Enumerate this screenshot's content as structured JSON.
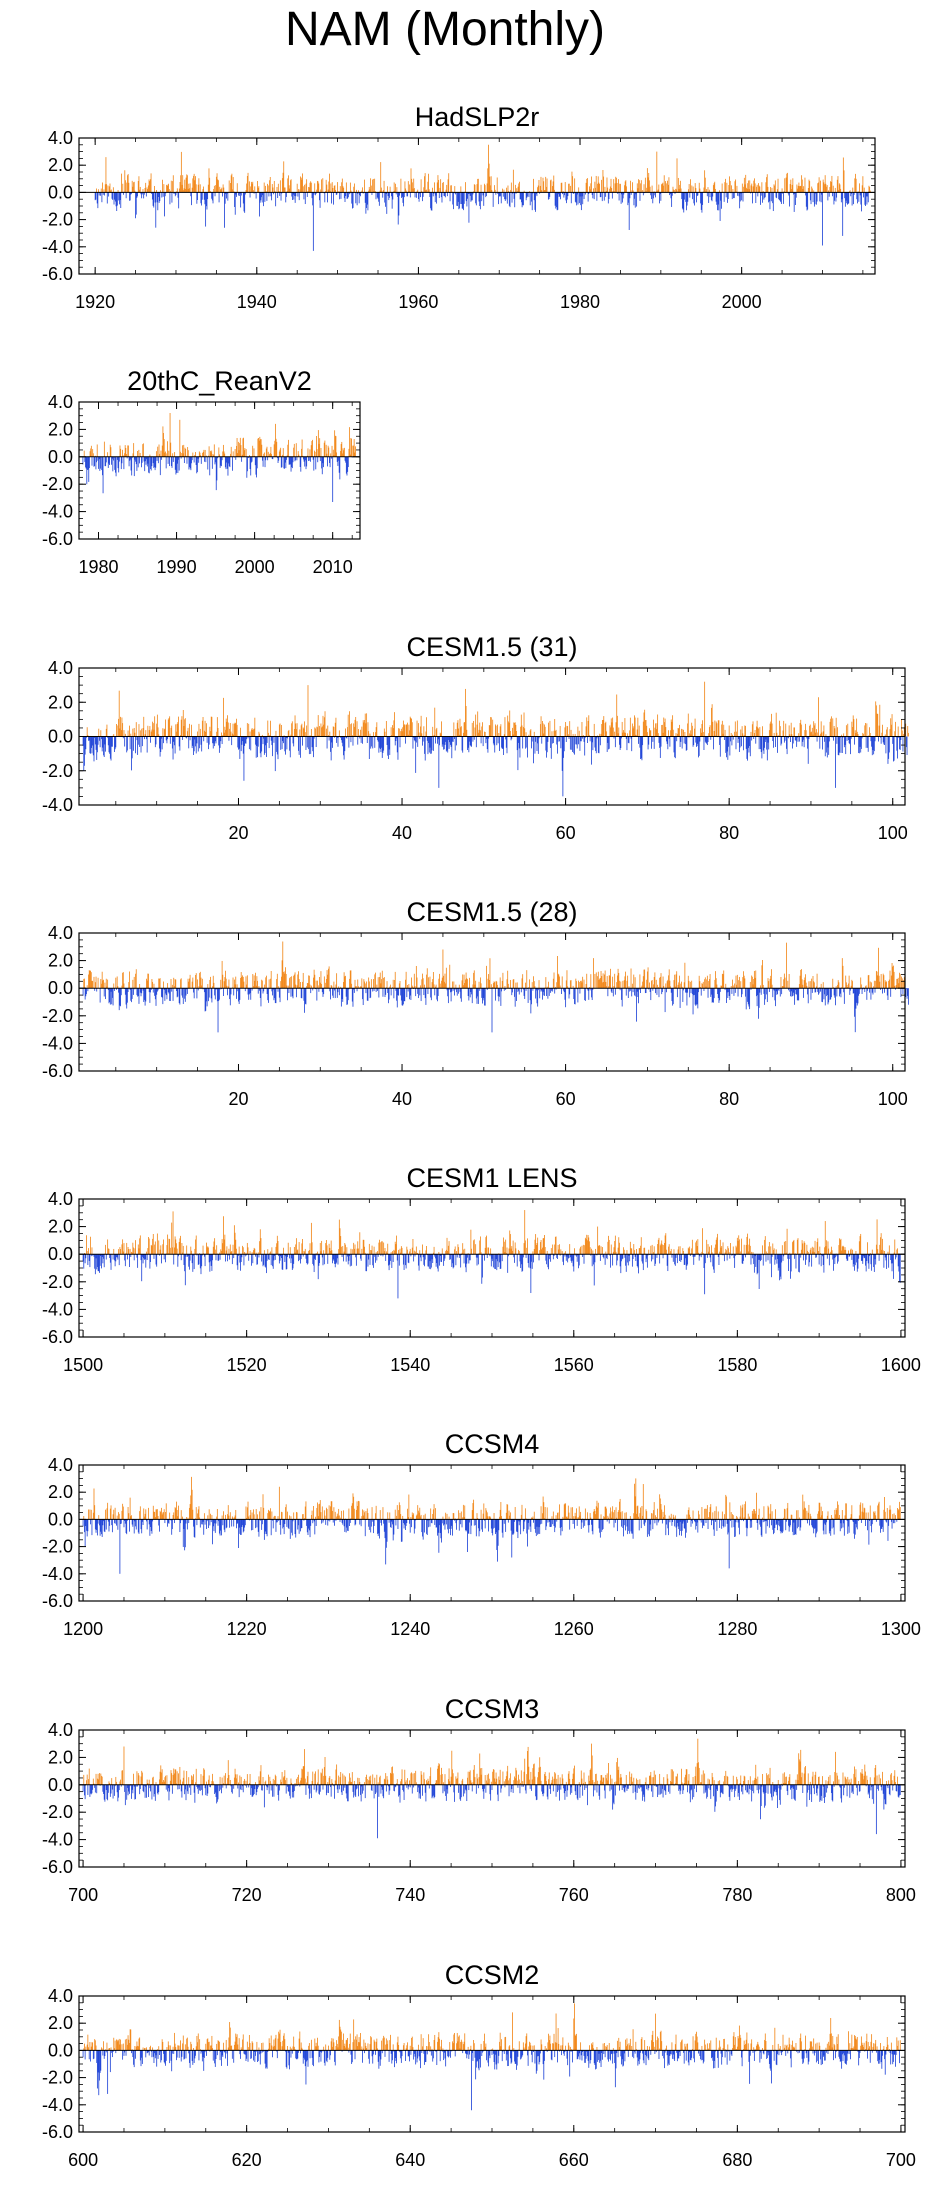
{
  "page_title": "NAM (Monthly)",
  "colors": {
    "positive": "#F28A1E",
    "negative": "#2448D8",
    "axis": "#000000"
  },
  "chart_data": [
    {
      "type": "bar",
      "title": "HadSLP2r",
      "x_range": [
        1920,
        2015
      ],
      "xlim": [
        1918,
        2016.5
      ],
      "x_ticks": [
        1920,
        1940,
        1960,
        1980,
        2000
      ],
      "x_tick_labels": [
        "1920",
        "1940",
        "1960",
        "1980",
        "2000"
      ],
      "ylim": [
        -6.0,
        4.0
      ],
      "y_ticks": [
        -6.0,
        -4.0,
        -2.0,
        0.0,
        2.0,
        4.0
      ],
      "y_tick_labels": [
        "-6.0",
        "-4.0",
        "-2.0",
        "0.0",
        "2.0",
        "4.0"
      ],
      "peaks": [
        {
          "x": 1989.5,
          "y": 3.0
        },
        {
          "x": 1992.0,
          "y": 2.5
        },
        {
          "x": 1947.0,
          "y": -4.3
        },
        {
          "x": 2010.0,
          "y": -3.9
        },
        {
          "x": 2012.5,
          "y": -3.2
        },
        {
          "x": 1936.0,
          "y": -2.6
        }
      ],
      "seed": 11
    },
    {
      "type": "bar",
      "title": "20thC_ReanV2",
      "x_range": [
        1978,
        2012
      ],
      "xlim": [
        1977.5,
        2013.5
      ],
      "x_ticks": [
        1980,
        1990,
        2000,
        2010
      ],
      "x_tick_labels": [
        "1980",
        "1990",
        "2000",
        "2010"
      ],
      "ylim": [
        -6.0,
        4.0
      ],
      "y_ticks": [
        -6.0,
        -4.0,
        -2.0,
        0.0,
        2.0,
        4.0
      ],
      "y_tick_labels": [
        "-6.0",
        "-4.0",
        "-2.0",
        "0.0",
        "2.0",
        "4.0"
      ],
      "peaks": [
        {
          "x": 1989.2,
          "y": 3.2
        },
        {
          "x": 1990.4,
          "y": 2.7
        },
        {
          "x": 2010.0,
          "y": -3.3
        },
        {
          "x": 1978.5,
          "y": -2.0
        }
      ],
      "seed": 23
    },
    {
      "type": "bar",
      "title": "CESM1.5 (31)",
      "x_range": [
        1,
        101
      ],
      "xlim": [
        0.5,
        101.5
      ],
      "x_ticks": [
        20,
        40,
        60,
        80,
        100
      ],
      "x_tick_labels": [
        "20",
        "40",
        "60",
        "80",
        "100"
      ],
      "ylim": [
        -4.0,
        4.0
      ],
      "y_ticks": [
        -4.0,
        -2.0,
        0.0,
        2.0,
        4.0
      ],
      "y_tick_labels": [
        "-4.0",
        "-2.0",
        "0.0",
        "2.0",
        "4.0"
      ],
      "peaks": [
        {
          "x": 28.5,
          "y": 3.0
        },
        {
          "x": 77.0,
          "y": 3.2
        },
        {
          "x": 44.5,
          "y": -3.0
        },
        {
          "x": 93.0,
          "y": -3.0
        }
      ],
      "seed": 37
    },
    {
      "type": "bar",
      "title": "CESM1.5 (28)",
      "x_range": [
        1,
        101
      ],
      "xlim": [
        0.5,
        101.5
      ],
      "x_ticks": [
        20,
        40,
        60,
        80,
        100
      ],
      "x_tick_labels": [
        "20",
        "40",
        "60",
        "80",
        "100"
      ],
      "ylim": [
        -6.0,
        4.0
      ],
      "y_ticks": [
        -6.0,
        -4.0,
        -2.0,
        0.0,
        2.0,
        4.0
      ],
      "y_tick_labels": [
        "-6.0",
        "-4.0",
        "-2.0",
        "0.0",
        "2.0",
        "4.0"
      ],
      "peaks": [
        {
          "x": 87.0,
          "y": 3.3
        },
        {
          "x": 45.0,
          "y": 2.8
        },
        {
          "x": 17.5,
          "y": -3.2
        },
        {
          "x": 51.0,
          "y": -3.2
        }
      ],
      "seed": 41
    },
    {
      "type": "bar",
      "title": "CESM1 LENS",
      "x_range": [
        1500,
        1599
      ],
      "xlim": [
        1499.5,
        1600.5
      ],
      "x_ticks": [
        1500,
        1520,
        1540,
        1560,
        1580,
        1600
      ],
      "x_tick_labels": [
        "1500",
        "1520",
        "1540",
        "1560",
        "1580",
        "1600"
      ],
      "ylim": [
        -6.0,
        4.0
      ],
      "y_ticks": [
        -6.0,
        -4.0,
        -2.0,
        0.0,
        2.0,
        4.0
      ],
      "y_tick_labels": [
        "-6.0",
        "-4.0",
        "-2.0",
        "0.0",
        "2.0",
        "4.0"
      ],
      "peaks": [
        {
          "x": 1511.0,
          "y": 3.1
        },
        {
          "x": 1554.0,
          "y": 3.2
        },
        {
          "x": 1538.5,
          "y": -3.2
        },
        {
          "x": 1576.0,
          "y": -2.9
        }
      ],
      "seed": 53
    },
    {
      "type": "bar",
      "title": "CCSM4",
      "x_range": [
        1200,
        1299
      ],
      "xlim": [
        1199.5,
        1300.5
      ],
      "x_ticks": [
        1200,
        1220,
        1240,
        1260,
        1280,
        1300
      ],
      "x_tick_labels": [
        "1200",
        "1220",
        "1240",
        "1260",
        "1280",
        "1300"
      ],
      "ylim": [
        -6.0,
        4.0
      ],
      "y_ticks": [
        -6.0,
        -4.0,
        -2.0,
        0.0,
        2.0,
        4.0
      ],
      "y_tick_labels": [
        "-6.0",
        "-4.0",
        "-2.0",
        "0.0",
        "2.0",
        "4.0"
      ],
      "peaks": [
        {
          "x": 1224.0,
          "y": 2.4
        },
        {
          "x": 1268.5,
          "y": 2.6
        },
        {
          "x": 1204.5,
          "y": -4.0
        },
        {
          "x": 1279.0,
          "y": -3.6
        }
      ],
      "seed": 67
    },
    {
      "type": "bar",
      "title": "CCSM3",
      "x_range": [
        700,
        799
      ],
      "xlim": [
        699.5,
        800.5
      ],
      "x_ticks": [
        700,
        720,
        740,
        760,
        780,
        800
      ],
      "x_tick_labels": [
        "700",
        "720",
        "740",
        "760",
        "780",
        "800"
      ],
      "ylim": [
        -6.0,
        4.0
      ],
      "y_ticks": [
        -6.0,
        -4.0,
        -2.0,
        0.0,
        2.0,
        4.0
      ],
      "y_tick_labels": [
        "-6.0",
        "-4.0",
        "-2.0",
        "0.0",
        "2.0",
        "4.0"
      ],
      "peaks": [
        {
          "x": 705.0,
          "y": 2.8
        },
        {
          "x": 792.0,
          "y": 2.4
        },
        {
          "x": 736.0,
          "y": -3.9
        },
        {
          "x": 797.0,
          "y": -3.6
        }
      ],
      "seed": 79
    },
    {
      "type": "bar",
      "title": "CCSM2",
      "x_range": [
        600,
        699
      ],
      "xlim": [
        599.5,
        700.5
      ],
      "x_ticks": [
        600,
        620,
        640,
        660,
        680,
        700
      ],
      "x_tick_labels": [
        "600",
        "620",
        "640",
        "660",
        "680",
        "700"
      ],
      "ylim": [
        -6.0,
        4.0
      ],
      "y_ticks": [
        -6.0,
        -4.0,
        -2.0,
        0.0,
        2.0,
        4.0
      ],
      "y_tick_labels": [
        "-6.0",
        "-4.0",
        "-2.0",
        "0.0",
        "2.0",
        "4.0"
      ],
      "peaks": [
        {
          "x": 652.5,
          "y": 2.8
        },
        {
          "x": 670.0,
          "y": 2.7
        },
        {
          "x": 647.5,
          "y": -4.4
        },
        {
          "x": 603.0,
          "y": -3.2
        }
      ],
      "seed": 83
    }
  ]
}
